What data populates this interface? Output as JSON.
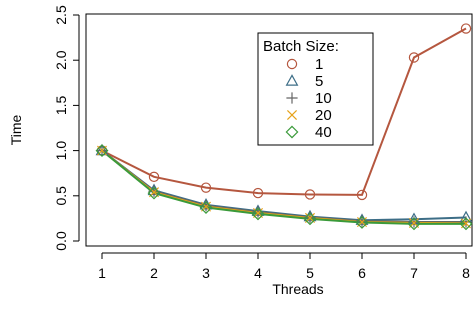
{
  "chart_data": {
    "type": "line",
    "title": "",
    "xlabel": "Threads",
    "ylabel": "Time",
    "x": [
      1,
      2,
      3,
      4,
      5,
      6,
      7,
      8
    ],
    "xlim": [
      1,
      8
    ],
    "ylim": [
      0,
      2.5
    ],
    "xticks": [
      "1",
      "2",
      "3",
      "4",
      "5",
      "6",
      "7",
      "8"
    ],
    "yticks": [
      "0.0",
      "0.5",
      "1.0",
      "1.5",
      "2.0",
      "2.5"
    ],
    "grid": false,
    "legend_position": "top-center",
    "legend_title": "Batch Size:",
    "series": [
      {
        "name": "1",
        "color": "#b5573f",
        "marker": "circle",
        "values": [
          1.0,
          0.71,
          0.59,
          0.53,
          0.515,
          0.51,
          2.03,
          2.35
        ]
      },
      {
        "name": "5",
        "color": "#3d6e87",
        "marker": "triangle",
        "values": [
          1.0,
          0.56,
          0.4,
          0.33,
          0.27,
          0.23,
          0.24,
          0.26
        ]
      },
      {
        "name": "10",
        "color": "#666666",
        "marker": "plus",
        "values": [
          1.0,
          0.55,
          0.39,
          0.32,
          0.26,
          0.22,
          0.21,
          0.21
        ]
      },
      {
        "name": "20",
        "color": "#e6a21a",
        "marker": "cross",
        "values": [
          1.0,
          0.54,
          0.38,
          0.31,
          0.255,
          0.21,
          0.2,
          0.195
        ]
      },
      {
        "name": "40",
        "color": "#3a9a3a",
        "marker": "diamond",
        "values": [
          1.0,
          0.53,
          0.37,
          0.3,
          0.245,
          0.205,
          0.19,
          0.19
        ]
      }
    ]
  }
}
